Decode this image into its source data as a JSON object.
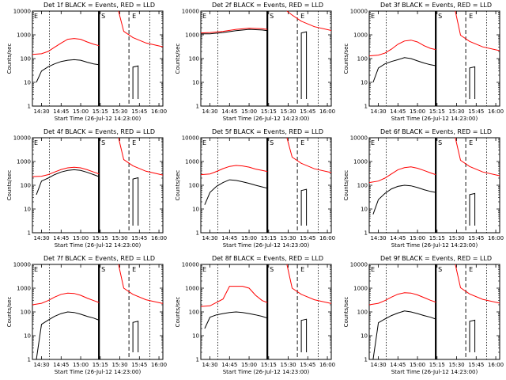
{
  "figure": {
    "x_tick_labels": [
      "14:30",
      "14:45",
      "15:00",
      "15:15",
      "15:30",
      "15:45",
      "16:00"
    ],
    "y_tick_labels": [
      "1",
      "10",
      "100",
      "1000",
      "10000"
    ],
    "ylabel": "Counts/sec",
    "xlabel": "Start Time (26-Jul-12 14:23:00)",
    "marker_labels": [
      "E",
      "S",
      "E"
    ],
    "colors": {
      "events": "#000000",
      "lld": "#ff0000",
      "axes": "#000000"
    }
  },
  "chart_data": [
    {
      "type": "line",
      "title": "Det 1f BLACK = Events, RED = LLD",
      "xlabel": "Start Time (26-Jul-12 14:23:00)",
      "ylabel": "Counts/sec",
      "scale": "log",
      "ylim": [
        1,
        10000
      ],
      "xlim_minutes_from_14_23": [
        0,
        100
      ],
      "series": [
        {
          "name": "Events",
          "color": "#000000",
          "x": [
            "14:26",
            "14:30",
            "14:35",
            "14:40",
            "14:45",
            "14:50",
            "14:55",
            "15:00",
            "15:05",
            "15:10",
            "15:14"
          ],
          "values": [
            10,
            30,
            45,
            60,
            75,
            85,
            90,
            85,
            70,
            60,
            55
          ]
        },
        {
          "name": "LLD",
          "color": "#ff0000",
          "x": [
            "14:23",
            "14:30",
            "14:35",
            "14:40",
            "14:45",
            "14:50",
            "14:55",
            "15:00",
            "15:05",
            "15:10",
            "15:14"
          ],
          "values": [
            150,
            160,
            200,
            300,
            450,
            650,
            700,
            650,
            500,
            400,
            350
          ]
        }
      ]
    },
    {
      "type": "line",
      "title": "Det 2f BLACK = Events, RED = LLD",
      "xlabel": "Start Time (26-Jul-12 14:23:00)",
      "ylabel": "Counts/sec",
      "scale": "log",
      "ylim": [
        1,
        10000
      ],
      "xlim_minutes_from_14_23": [
        0,
        100
      ],
      "series": [
        {
          "name": "Events",
          "color": "#000000",
          "x": [
            "14:23",
            "14:30",
            "14:40",
            "14:50",
            "15:00",
            "15:10",
            "15:14"
          ],
          "values": [
            1100,
            1100,
            1250,
            1500,
            1700,
            1600,
            1500
          ]
        },
        {
          "name": "LLD",
          "color": "#ff0000",
          "x": [
            "14:23",
            "14:30",
            "14:40",
            "14:50",
            "15:00",
            "15:10",
            "15:14"
          ],
          "values": [
            1200,
            1250,
            1400,
            1700,
            1900,
            1800,
            1700
          ]
        }
      ]
    },
    {
      "type": "line",
      "title": "Det 3f BLACK = Events, RED = LLD",
      "xlabel": "Start Time (26-Jul-12 14:23:00)",
      "ylabel": "Counts/sec",
      "scale": "log",
      "ylim": [
        1,
        10000
      ],
      "xlim_minutes_from_14_23": [
        0,
        100
      ],
      "series": [
        {
          "name": "Events",
          "color": "#000000",
          "x": [
            "14:26",
            "14:30",
            "14:35",
            "14:40",
            "14:45",
            "14:50",
            "14:55",
            "15:00",
            "15:05",
            "15:10",
            "15:14"
          ],
          "values": [
            10,
            40,
            60,
            75,
            90,
            110,
            100,
            80,
            65,
            55,
            50
          ]
        },
        {
          "name": "LLD",
          "color": "#ff0000",
          "x": [
            "14:23",
            "14:30",
            "14:35",
            "14:40",
            "14:45",
            "14:50",
            "14:55",
            "15:00",
            "15:05",
            "15:10",
            "15:14"
          ],
          "values": [
            130,
            140,
            170,
            250,
            400,
            550,
            600,
            500,
            350,
            270,
            240
          ]
        }
      ]
    },
    {
      "type": "line",
      "title": "Det 4f BLACK = Events, RED = LLD",
      "xlabel": "Start Time (26-Jul-12 14:23:00)",
      "ylabel": "Counts/sec",
      "scale": "log",
      "ylim": [
        1,
        10000
      ],
      "xlim_minutes_from_14_23": [
        0,
        100
      ],
      "series": [
        {
          "name": "Events",
          "color": "#000000",
          "x": [
            "14:26",
            "14:30",
            "14:35",
            "14:40",
            "14:45",
            "14:50",
            "14:55",
            "15:00",
            "15:05",
            "15:10",
            "15:14"
          ],
          "values": [
            40,
            150,
            200,
            280,
            360,
            420,
            450,
            420,
            350,
            280,
            230
          ]
        },
        {
          "name": "LLD",
          "color": "#ff0000",
          "x": [
            "14:23",
            "14:30",
            "14:35",
            "14:40",
            "14:45",
            "14:50",
            "14:55",
            "15:00",
            "15:05",
            "15:10",
            "15:14"
          ],
          "values": [
            230,
            240,
            280,
            360,
            460,
            540,
            570,
            540,
            450,
            360,
            300
          ]
        }
      ]
    },
    {
      "type": "line",
      "title": "Det 5f BLACK = Events, RED = LLD",
      "xlabel": "Start Time (26-Jul-12 14:23:00)",
      "ylabel": "Counts/sec",
      "scale": "log",
      "ylim": [
        1,
        10000
      ],
      "xlim_minutes_from_14_23": [
        0,
        100
      ],
      "series": [
        {
          "name": "Events",
          "color": "#000000",
          "x": [
            "14:26",
            "14:30",
            "14:35",
            "14:40",
            "14:45",
            "14:50",
            "14:55",
            "15:00",
            "15:05",
            "15:10",
            "15:14"
          ],
          "values": [
            15,
            50,
            90,
            130,
            170,
            160,
            140,
            120,
            100,
            85,
            75
          ]
        },
        {
          "name": "LLD",
          "color": "#ff0000",
          "x": [
            "14:23",
            "14:30",
            "14:35",
            "14:40",
            "14:45",
            "14:50",
            "14:55",
            "15:00",
            "15:05",
            "15:10",
            "15:14"
          ],
          "values": [
            280,
            300,
            380,
            500,
            620,
            680,
            650,
            580,
            480,
            420,
            380
          ]
        }
      ]
    },
    {
      "type": "line",
      "title": "Det 6f BLACK = Events, RED = LLD",
      "xlabel": "Start Time (26-Jul-12 14:23:00)",
      "ylabel": "Counts/sec",
      "scale": "log",
      "ylim": [
        1,
        10000
      ],
      "xlim_minutes_from_14_23": [
        0,
        100
      ],
      "series": [
        {
          "name": "Events",
          "color": "#000000",
          "x": [
            "14:26",
            "14:30",
            "14:35",
            "14:40",
            "14:45",
            "14:50",
            "14:55",
            "15:00",
            "15:05",
            "15:10",
            "15:14"
          ],
          "values": [
            6,
            25,
            45,
            70,
            90,
            100,
            95,
            80,
            65,
            55,
            50
          ]
        },
        {
          "name": "LLD",
          "color": "#ff0000",
          "x": [
            "14:23",
            "14:30",
            "14:35",
            "14:40",
            "14:45",
            "14:50",
            "14:55",
            "15:00",
            "15:05",
            "15:10",
            "15:14"
          ],
          "values": [
            130,
            150,
            200,
            300,
            450,
            550,
            600,
            520,
            420,
            330,
            280
          ]
        }
      ]
    },
    {
      "type": "line",
      "title": "Det 7f BLACK = Events, RED = LLD",
      "xlabel": "Start Time (26-Jul-12 14:23:00)",
      "ylabel": "Counts/sec",
      "scale": "log",
      "ylim": [
        1,
        10000
      ],
      "xlim_minutes_from_14_23": [
        0,
        100
      ],
      "series": [
        {
          "name": "Events",
          "color": "#000000",
          "x": [
            "14:26",
            "14:30",
            "14:35",
            "14:40",
            "14:45",
            "14:50",
            "14:55",
            "15:00",
            "15:05",
            "15:10",
            "15:14"
          ],
          "values": [
            1,
            30,
            45,
            65,
            85,
            100,
            95,
            80,
            65,
            55,
            45
          ]
        },
        {
          "name": "LLD",
          "color": "#ff0000",
          "x": [
            "14:23",
            "14:30",
            "14:35",
            "14:40",
            "14:45",
            "14:50",
            "14:55",
            "15:00",
            "15:05",
            "15:10",
            "15:14"
          ],
          "values": [
            200,
            230,
            300,
            420,
            550,
            620,
            600,
            500,
            380,
            300,
            250
          ]
        }
      ]
    },
    {
      "type": "line",
      "title": "Det 8f BLACK = Events, RED = LLD",
      "xlabel": "Start Time (26-Jul-12 14:23:00)",
      "ylabel": "Counts/sec",
      "scale": "log",
      "ylim": [
        1,
        10000
      ],
      "xlim_minutes_from_14_23": [
        0,
        100
      ],
      "series": [
        {
          "name": "Events",
          "color": "#000000",
          "x": [
            "14:26",
            "14:30",
            "14:35",
            "14:40",
            "14:45",
            "14:50",
            "14:55",
            "15:00",
            "15:05",
            "15:10",
            "15:14"
          ],
          "values": [
            20,
            60,
            75,
            85,
            95,
            100,
            95,
            85,
            75,
            65,
            55
          ]
        },
        {
          "name": "LLD",
          "color": "#ff0000",
          "x": [
            "14:23",
            "14:30",
            "14:35",
            "14:40",
            "14:45",
            "14:50",
            "14:55",
            "15:00",
            "15:05",
            "15:10",
            "15:14"
          ],
          "values": [
            170,
            180,
            250,
            350,
            1200,
            1200,
            1200,
            1000,
            500,
            300,
            250
          ]
        }
      ]
    },
    {
      "type": "line",
      "title": "Det 9f BLACK = Events, RED = LLD",
      "xlabel": "Start Time (26-Jul-12 14:23:00)",
      "ylabel": "Counts/sec",
      "scale": "log",
      "ylim": [
        1,
        10000
      ],
      "xlim_minutes_from_14_23": [
        0,
        100
      ],
      "series": [
        {
          "name": "Events",
          "color": "#000000",
          "x": [
            "14:26",
            "14:30",
            "14:35",
            "14:40",
            "14:45",
            "14:50",
            "14:55",
            "15:00",
            "15:05",
            "15:10",
            "15:14"
          ],
          "values": [
            1,
            35,
            50,
            70,
            90,
            110,
            100,
            85,
            70,
            60,
            50
          ]
        },
        {
          "name": "LLD",
          "color": "#ff0000",
          "x": [
            "14:23",
            "14:30",
            "14:35",
            "14:40",
            "14:45",
            "14:50",
            "14:55",
            "15:00",
            "15:05",
            "15:10",
            "15:14"
          ],
          "values": [
            200,
            230,
            300,
            420,
            560,
            640,
            620,
            520,
            400,
            310,
            260
          ]
        }
      ]
    }
  ]
}
